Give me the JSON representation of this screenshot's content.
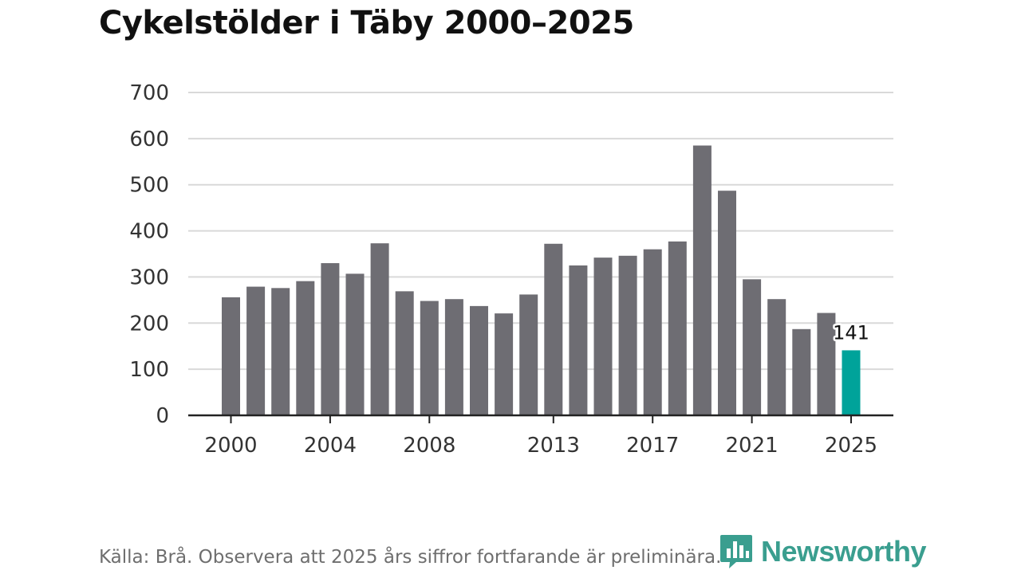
{
  "header": {
    "title": "Cykelstölder i Täby 2000–2025"
  },
  "footer": {
    "source": "Källa: Brå. Observera att 2025 års siffror fortfarande är preliminära.",
    "brand": "Newsworthy",
    "brand_icon": "bar-chart-pin-icon",
    "brand_color": "#3a9e8f"
  },
  "colors": {
    "bar": "#6e6d73",
    "highlight": "#00a39a",
    "grid": "#d9d9d9",
    "axis": "#222222"
  },
  "chart_data": {
    "type": "bar",
    "title": "Cykelstölder i Täby 2000–2025",
    "xlabel": "",
    "ylabel": "",
    "ylim": [
      0,
      700
    ],
    "yticks": [
      0,
      100,
      200,
      300,
      400,
      500,
      600,
      700
    ],
    "xtick_labels": [
      "2000",
      "2004",
      "2008",
      "2013",
      "2017",
      "2021",
      "2025"
    ],
    "grid": true,
    "categories": [
      "2000",
      "2001",
      "2002",
      "2003",
      "2004",
      "2005",
      "2006",
      "2007",
      "2008",
      "2009",
      "2010",
      "2011",
      "2012",
      "2013",
      "2014",
      "2015",
      "2016",
      "2017",
      "2018",
      "2019",
      "2020",
      "2021",
      "2022",
      "2023",
      "2024",
      "2025"
    ],
    "values": [
      256,
      279,
      276,
      291,
      330,
      307,
      373,
      269,
      248,
      252,
      237,
      221,
      262,
      372,
      325,
      342,
      346,
      360,
      377,
      585,
      487,
      295,
      252,
      187,
      222,
      141
    ],
    "highlight_category": "2025",
    "annotations": [
      {
        "category": "2025",
        "text": "141"
      }
    ]
  }
}
